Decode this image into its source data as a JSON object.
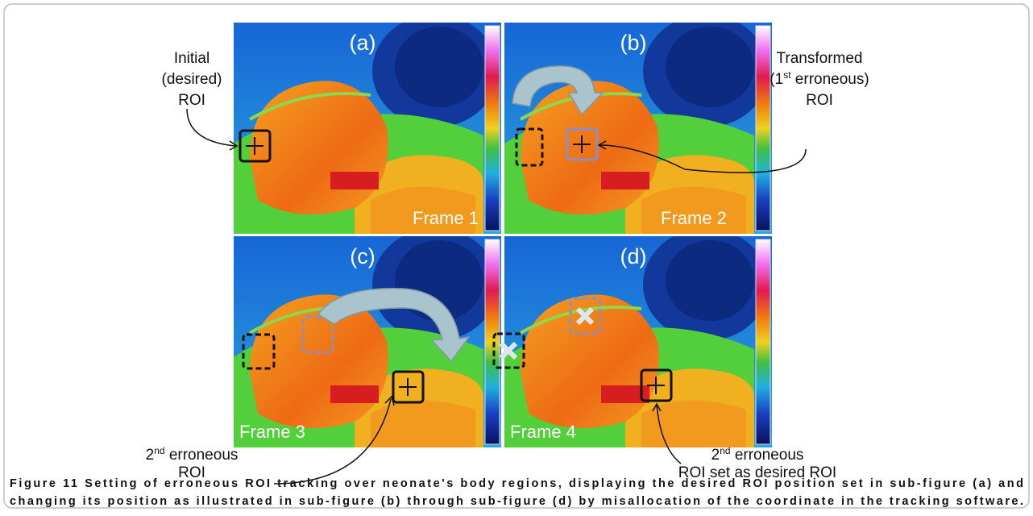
{
  "panels": [
    {
      "label": "(a)",
      "frame": "Frame 1"
    },
    {
      "label": "(b)",
      "frame": "Frame 2"
    },
    {
      "label": "(c)",
      "frame": "Frame 3"
    },
    {
      "label": "(d)",
      "frame": "Frame 4"
    }
  ],
  "annotations": {
    "initial": [
      "Initial",
      "(desired)",
      "ROI"
    ],
    "transformed": {
      "line1": "Transformed",
      "pre": "(1",
      "sup": "st",
      "post": " erroneous)",
      "line3": "ROI"
    },
    "second_c": {
      "pre": "2",
      "sup": "nd",
      "post": " erroneous",
      "line2": "ROI"
    },
    "second_d": {
      "pre": "2",
      "sup": "nd",
      "post": " erroneous",
      "line2": "ROI set as desired ROI"
    }
  },
  "caption": {
    "label": "Figure 11",
    "line1": " Setting of erroneous ROI tracking over neonate's body regions, displaying the desired ROI position set in sub-figure (a) and",
    "line2": "changing its position as illustrated in sub-figure (b) through sub-figure (d) by misallocation of the coordinate in the tracking software."
  }
}
